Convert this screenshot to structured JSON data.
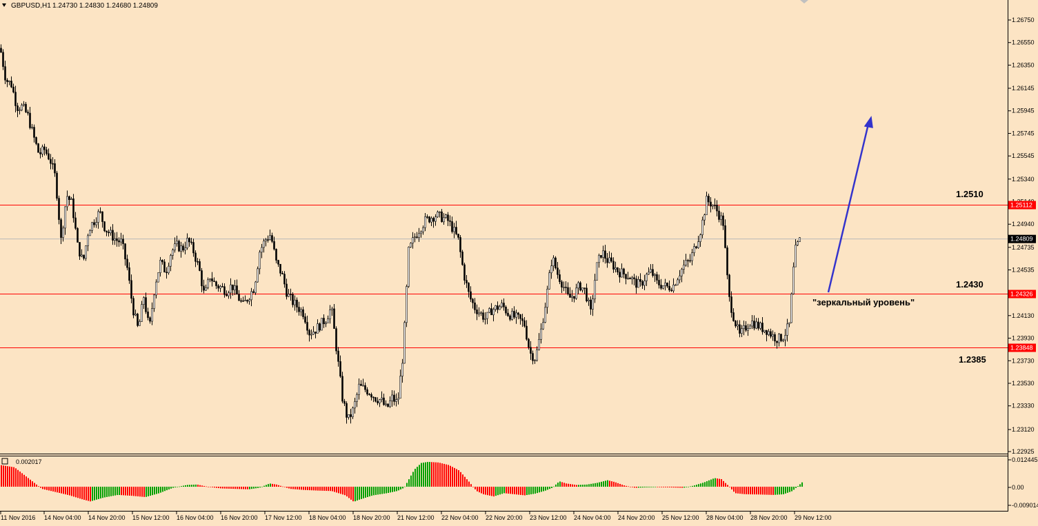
{
  "header": {
    "symbol": "GBPUSD,H1",
    "ohlc": "1.24730 1.24830 1.24680 1.24809",
    "dropdown_icon": "triangle-down-icon"
  },
  "colors": {
    "background": "#FCE4C4",
    "candle": "#000000",
    "level_line": "#FF0000",
    "level_badge": "#FF0000",
    "bid_badge": "#000000",
    "arrow": "#3333CC",
    "osc_up": "#00A000",
    "osc_down": "#FF0000"
  },
  "annotations": {
    "level_top": "1.2510",
    "level_mid": "1.2430",
    "level_bottom": "1.2385",
    "mirror_note": "\"зеркальный уровень\""
  },
  "indicator": {
    "label": "0.002017",
    "axis_labels": [
      "0.012445",
      "0.00",
      "-0.009014"
    ]
  },
  "chart_data": {
    "type": "candlestick",
    "symbol": "GBPUSD",
    "timeframe": "H1",
    "price_ticks": [
      "1.26750",
      "1.26550",
      "1.26350",
      "1.26145",
      "1.25945",
      "1.25745",
      "1.25545",
      "1.25340",
      "1.25140",
      "1.24940",
      "1.24735",
      "1.24535",
      "1.24335",
      "1.24130",
      "1.23930",
      "1.23730",
      "1.23530",
      "1.23330",
      "1.23120",
      "1.22925"
    ],
    "x_ticks": [
      "11 Nov 2016",
      "14 Nov 04:00",
      "14 Nov 20:00",
      "15 Nov 12:00",
      "16 Nov 04:00",
      "16 Nov 20:00",
      "17 Nov 12:00",
      "18 Nov 04:00",
      "18 Nov 20:00",
      "21 Nov 12:00",
      "22 Nov 04:00",
      "22 Nov 20:00",
      "23 Nov 12:00",
      "24 Nov 04:00",
      "24 Nov 20:00",
      "25 Nov 12:00",
      "28 Nov 04:00",
      "28 Nov 20:00",
      "29 Nov 12:00"
    ],
    "levels": [
      {
        "price": 1.25112,
        "label": "1.25112"
      },
      {
        "price": 1.24326,
        "label": "1.24326"
      },
      {
        "price": 1.23848,
        "label": "1.23848"
      }
    ],
    "bid": {
      "price": 1.24809,
      "label": "1.24809"
    },
    "ylim": [
      1.22925,
      1.2685
    ],
    "close_path": [
      [
        0,
        1.265
      ],
      [
        8,
        1.2622
      ],
      [
        16,
        1.2618
      ],
      [
        24,
        1.2598
      ],
      [
        32,
        1.2598
      ],
      [
        40,
        1.259
      ],
      [
        48,
        1.2572
      ],
      [
        56,
        1.2556
      ],
      [
        64,
        1.256
      ],
      [
        72,
        1.2552
      ],
      [
        80,
        1.2535
      ],
      [
        88,
        1.248
      ],
      [
        96,
        1.252
      ],
      [
        104,
        1.2512
      ],
      [
        112,
        1.2475
      ],
      [
        120,
        1.246
      ],
      [
        128,
        1.249
      ],
      [
        136,
        1.2497
      ],
      [
        144,
        1.2505
      ],
      [
        152,
        1.249
      ],
      [
        160,
        1.2485
      ],
      [
        168,
        1.248
      ],
      [
        176,
        1.2478
      ],
      [
        184,
        1.2455
      ],
      [
        192,
        1.242
      ],
      [
        200,
        1.24
      ],
      [
        208,
        1.243
      ],
      [
        216,
        1.24
      ],
      [
        224,
        1.244
      ],
      [
        232,
        1.246
      ],
      [
        240,
        1.2452
      ],
      [
        248,
        1.247
      ],
      [
        256,
        1.2475
      ],
      [
        264,
        1.2472
      ],
      [
        272,
        1.248
      ],
      [
        280,
        1.247
      ],
      [
        288,
        1.2455
      ],
      [
        296,
        1.243
      ],
      [
        304,
        1.2448
      ],
      [
        312,
        1.244
      ],
      [
        320,
        1.2438
      ],
      [
        328,
        1.2435
      ],
      [
        336,
        1.244
      ],
      [
        344,
        1.243
      ],
      [
        352,
        1.2422
      ],
      [
        360,
        1.243
      ],
      [
        368,
        1.2438
      ],
      [
        376,
        1.247
      ],
      [
        384,
        1.248
      ],
      [
        392,
        1.2485
      ],
      [
        400,
        1.246
      ],
      [
        408,
        1.245
      ],
      [
        416,
        1.2432
      ],
      [
        424,
        1.2425
      ],
      [
        432,
        1.242
      ],
      [
        440,
        1.2415
      ],
      [
        448,
        1.2398
      ],
      [
        456,
        1.24
      ],
      [
        464,
        1.2405
      ],
      [
        472,
        1.241
      ],
      [
        480,
        1.242
      ],
      [
        488,
        1.238
      ],
      [
        496,
        1.234
      ],
      [
        504,
        1.232
      ],
      [
        512,
        1.233
      ],
      [
        520,
        1.235
      ],
      [
        528,
        1.2348
      ],
      [
        536,
        1.2345
      ],
      [
        544,
        1.234
      ],
      [
        552,
        1.2338
      ],
      [
        560,
        1.233
      ],
      [
        568,
        1.234
      ],
      [
        576,
        1.2335
      ],
      [
        584,
        1.238
      ],
      [
        592,
        1.247
      ],
      [
        600,
        1.2482
      ],
      [
        608,
        1.249
      ],
      [
        616,
        1.2497
      ],
      [
        624,
        1.25
      ],
      [
        632,
        1.2502
      ],
      [
        640,
        1.25
      ],
      [
        648,
        1.2498
      ],
      [
        656,
        1.249
      ],
      [
        664,
        1.248
      ],
      [
        672,
        1.245
      ],
      [
        680,
        1.243
      ],
      [
        688,
        1.242
      ],
      [
        696,
        1.2415
      ],
      [
        704,
        1.241
      ],
      [
        712,
        1.2418
      ],
      [
        720,
        1.242
      ],
      [
        728,
        1.2422
      ],
      [
        736,
        1.2415
      ],
      [
        744,
        1.2412
      ],
      [
        752,
        1.241
      ],
      [
        760,
        1.2405
      ],
      [
        768,
        1.238
      ],
      [
        776,
        1.2375
      ],
      [
        784,
        1.24
      ],
      [
        792,
        1.243
      ],
      [
        800,
        1.2465
      ],
      [
        808,
        1.245
      ],
      [
        816,
        1.244
      ],
      [
        824,
        1.2428
      ],
      [
        832,
        1.2432
      ],
      [
        840,
        1.244
      ],
      [
        848,
        1.2435
      ],
      [
        856,
        1.2415
      ],
      [
        864,
        1.2455
      ],
      [
        872,
        1.247
      ],
      [
        880,
        1.2462
      ],
      [
        888,
        1.2458
      ],
      [
        896,
        1.2452
      ],
      [
        904,
        1.245
      ],
      [
        912,
        1.2448
      ],
      [
        920,
        1.2442
      ],
      [
        928,
        1.244
      ],
      [
        936,
        1.2448
      ],
      [
        944,
        1.2452
      ],
      [
        952,
        1.2442
      ],
      [
        960,
        1.244
      ],
      [
        968,
        1.2438
      ],
      [
        976,
        1.244
      ],
      [
        984,
        1.245
      ],
      [
        992,
        1.2458
      ],
      [
        1000,
        1.2462
      ],
      [
        1008,
        1.2475
      ],
      [
        1016,
        1.249
      ],
      [
        1024,
        1.2515
      ],
      [
        1032,
        1.2512
      ],
      [
        1040,
        1.2505
      ],
      [
        1048,
        1.2495
      ],
      [
        1056,
        1.243
      ],
      [
        1064,
        1.241
      ],
      [
        1072,
        1.2395
      ],
      [
        1080,
        1.2402
      ],
      [
        1088,
        1.2408
      ],
      [
        1096,
        1.2405
      ],
      [
        1104,
        1.2402
      ],
      [
        1112,
        1.24
      ],
      [
        1120,
        1.2395
      ],
      [
        1128,
        1.2392
      ],
      [
        1136,
        1.2395
      ],
      [
        1144,
        1.2405
      ],
      [
        1152,
        1.247
      ],
      [
        1160,
        1.2481
      ]
    ],
    "oscillator": {
      "name": "AO",
      "ylim": [
        -0.009014,
        0.012445
      ],
      "values_path": [
        [
          0,
          0.01
        ],
        [
          20,
          0.009
        ],
        [
          40,
          0.004
        ],
        [
          60,
          -0.001
        ],
        [
          80,
          -0.0025
        ],
        [
          100,
          -0.004
        ],
        [
          120,
          -0.006
        ],
        [
          130,
          -0.0068
        ],
        [
          150,
          -0.005
        ],
        [
          170,
          -0.0038
        ],
        [
          190,
          -0.0042
        ],
        [
          210,
          -0.0048
        ],
        [
          230,
          -0.003
        ],
        [
          250,
          -0.0005
        ],
        [
          270,
          0.0008
        ],
        [
          285,
          0.001
        ],
        [
          300,
          0.0
        ],
        [
          320,
          -0.0008
        ],
        [
          340,
          -0.001
        ],
        [
          360,
          -0.0012
        ],
        [
          375,
          -0.0005
        ],
        [
          390,
          0.0015
        ],
        [
          400,
          0.001
        ],
        [
          420,
          -0.001
        ],
        [
          440,
          -0.0015
        ],
        [
          460,
          -0.0018
        ],
        [
          480,
          -0.002
        ],
        [
          500,
          -0.004
        ],
        [
          512,
          -0.007
        ],
        [
          520,
          -0.006
        ],
        [
          540,
          -0.004
        ],
        [
          560,
          -0.003
        ],
        [
          575,
          -0.002
        ],
        [
          585,
          -0.0005
        ],
        [
          600,
          0.008
        ],
        [
          610,
          0.011
        ],
        [
          620,
          0.0115
        ],
        [
          635,
          0.0112
        ],
        [
          650,
          0.01
        ],
        [
          665,
          0.0075
        ],
        [
          680,
          0.002
        ],
        [
          690,
          -0.002
        ],
        [
          700,
          -0.0035
        ],
        [
          715,
          -0.0045
        ],
        [
          730,
          -0.003
        ],
        [
          745,
          -0.0035
        ],
        [
          760,
          -0.004
        ],
        [
          775,
          -0.0032
        ],
        [
          790,
          -0.0018
        ],
        [
          800,
          -0.0005
        ],
        [
          810,
          0.0025
        ],
        [
          820,
          0.0015
        ],
        [
          835,
          0.0008
        ],
        [
          850,
          0.001
        ],
        [
          865,
          0.0018
        ],
        [
          880,
          0.003
        ],
        [
          890,
          0.0022
        ],
        [
          905,
          0.0005
        ],
        [
          920,
          -0.0005
        ],
        [
          935,
          -0.0003
        ],
        [
          950,
          -0.0002
        ],
        [
          970,
          -0.0003
        ],
        [
          990,
          -0.0005
        ],
        [
          1005,
          0.0005
        ],
        [
          1020,
          0.002
        ],
        [
          1035,
          0.004
        ],
        [
          1045,
          0.0035
        ],
        [
          1055,
          0.0005
        ],
        [
          1065,
          -0.003
        ],
        [
          1080,
          -0.0035
        ],
        [
          1100,
          -0.0036
        ],
        [
          1120,
          -0.0038
        ],
        [
          1135,
          -0.0035
        ],
        [
          1148,
          -0.002
        ],
        [
          1162,
          0.002
        ]
      ]
    }
  }
}
